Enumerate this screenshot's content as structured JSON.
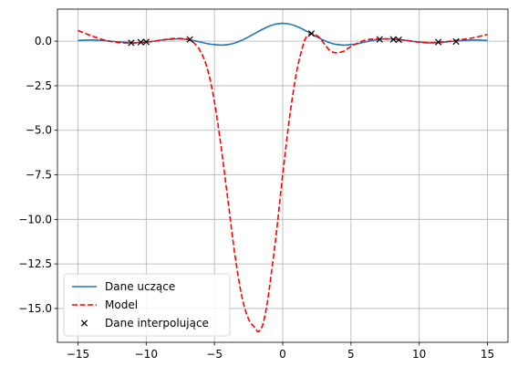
{
  "chart_data": {
    "type": "line",
    "title": "",
    "xlabel": "",
    "ylabel": "",
    "xlim": [
      -16.5,
      16.5
    ],
    "ylim": [
      -16.9,
      1.8
    ],
    "xticks": [
      -15,
      -10,
      -5,
      0,
      5,
      10,
      15
    ],
    "xtick_labels": [
      "−15",
      "−10",
      "−5",
      "0",
      "5",
      "10",
      "15"
    ],
    "yticks": [
      0,
      -2.5,
      -5,
      -7.5,
      -10,
      -12.5,
      -15
    ],
    "ytick_labels": [
      "0.0",
      "−2.5",
      "−5.0",
      "−7.5",
      "−10.0",
      "−12.5",
      "−15.0"
    ],
    "grid": true,
    "legend_position": "lower-left",
    "series": [
      {
        "name": "Dane uczące",
        "kind": "line",
        "style": "solid",
        "color": "#1f77b4",
        "x": [
          -15,
          -14,
          -13,
          -12,
          -11,
          -10,
          -9.5,
          -9,
          -8.5,
          -8,
          -7.5,
          -7,
          -6.5,
          -6,
          -5.5,
          -5,
          -4.5,
          -4,
          -3.5,
          -3,
          -2.5,
          -2,
          -1.5,
          -1,
          -0.5,
          0,
          0.5,
          1,
          1.5,
          2,
          2.5,
          3,
          3.5,
          4,
          4.5,
          5,
          5.5,
          6,
          6.5,
          7,
          7.5,
          8,
          8.5,
          9,
          9.5,
          10,
          10.5,
          11,
          11.5,
          12,
          13,
          14,
          15
        ],
        "y": [
          0.04,
          0.07,
          0.03,
          -0.04,
          -0.09,
          -0.05,
          -0.01,
          0.05,
          0.09,
          0.12,
          0.13,
          0.09,
          0.03,
          -0.05,
          -0.14,
          -0.19,
          -0.22,
          -0.19,
          -0.1,
          0.05,
          0.24,
          0.45,
          0.66,
          0.84,
          0.96,
          1.0,
          0.96,
          0.84,
          0.66,
          0.45,
          0.24,
          0.05,
          -0.1,
          -0.19,
          -0.22,
          -0.19,
          -0.14,
          -0.05,
          0.03,
          0.09,
          0.13,
          0.12,
          0.09,
          0.05,
          -0.01,
          -0.05,
          -0.09,
          -0.09,
          -0.07,
          -0.04,
          0.03,
          0.07,
          0.04
        ]
      },
      {
        "name": "Model",
        "kind": "line",
        "style": "dashed",
        "color": "#ff0000",
        "x": [
          -15,
          -14,
          -13,
          -12,
          -11,
          -10,
          -9,
          -8,
          -7,
          -6.5,
          -6,
          -5.5,
          -5,
          -4.5,
          -4,
          -3.5,
          -3,
          -2.5,
          -2,
          -1.8,
          -1.5,
          -1.2,
          -1,
          -0.5,
          0,
          0.5,
          1,
          1.5,
          1.8,
          2.2,
          2.7,
          3,
          3.5,
          4,
          4.5,
          5,
          6,
          7,
          8,
          9,
          10,
          11,
          12,
          13,
          14,
          15
        ],
        "y": [
          0.6,
          0.3,
          0.05,
          -0.08,
          -0.1,
          -0.05,
          0.05,
          0.15,
          0.12,
          -0.1,
          -0.6,
          -1.6,
          -3.4,
          -6.0,
          -9.0,
          -12.0,
          -14.3,
          -15.6,
          -16.1,
          -16.3,
          -16.0,
          -15.0,
          -14.0,
          -11.0,
          -7.5,
          -4.3,
          -1.8,
          -0.2,
          0.3,
          0.42,
          0.2,
          -0.1,
          -0.55,
          -0.65,
          -0.55,
          -0.3,
          0.05,
          0.12,
          0.12,
          0.05,
          -0.05,
          -0.08,
          -0.02,
          0.08,
          0.2,
          0.38
        ]
      },
      {
        "name": "Dane interpolujące",
        "kind": "scatter",
        "marker": "x",
        "color": "#000000",
        "x": [
          -11.1,
          -10.4,
          -10.0,
          -6.8,
          2.1,
          7.1,
          8.1,
          8.5,
          11.4,
          12.7
        ],
        "y": [
          -0.09,
          -0.06,
          -0.04,
          0.1,
          0.43,
          0.1,
          0.1,
          0.08,
          -0.05,
          -0.02
        ]
      }
    ]
  }
}
